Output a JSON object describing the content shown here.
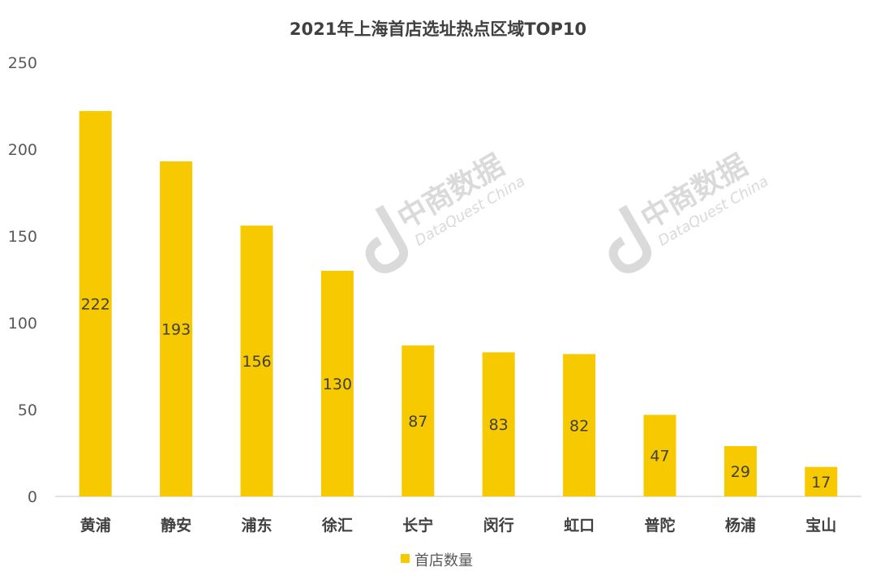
{
  "chart_data": {
    "type": "bar",
    "title": "2021年上海首店选址热点区域TOP10",
    "categories": [
      "黄浦",
      "静安",
      "浦东",
      "徐汇",
      "长宁",
      "闵行",
      "虹口",
      "普陀",
      "杨浦",
      "宝山"
    ],
    "series": [
      {
        "name": "首店数量",
        "values": [
          222,
          193,
          156,
          130,
          87,
          83,
          82,
          47,
          29,
          17
        ],
        "color": "#F7C900"
      }
    ],
    "xlabel": "",
    "ylabel": "",
    "ylim": [
      0,
      250
    ],
    "yticks": [
      0,
      50,
      100,
      150,
      200,
      250
    ],
    "grid": false,
    "legend": "bottom-center",
    "data_labels": true
  },
  "watermark": {
    "brand": "中商数据",
    "sub": "DataQuest China"
  }
}
